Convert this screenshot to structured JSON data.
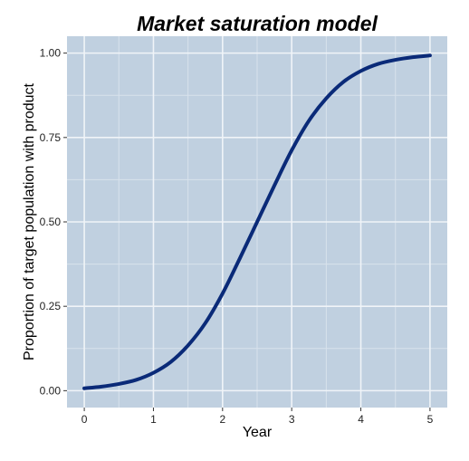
{
  "chart_data": {
    "type": "line",
    "title": "Market saturation model",
    "xlabel": "Year",
    "ylabel": "Proportion of target population with product",
    "xlim": [
      -0.25,
      5.25
    ],
    "ylim": [
      -0.05,
      1.05
    ],
    "grid": true,
    "legend": "none",
    "xticks": [
      0,
      1,
      2,
      3,
      4,
      5
    ],
    "yticks": [
      0.0,
      0.25,
      0.5,
      0.75,
      1.0
    ],
    "xtick_labels": [
      "0",
      "1",
      "2",
      "3",
      "4",
      "5"
    ],
    "ytick_labels": [
      "0.00",
      "0.25",
      "0.50",
      "0.75",
      "1.00"
    ],
    "series": [
      {
        "color": "#0a2a78",
        "x": [
          0.0,
          0.25,
          0.5,
          0.75,
          1.0,
          1.25,
          1.5,
          1.75,
          2.0,
          2.25,
          2.5,
          2.75,
          3.0,
          3.25,
          3.5,
          3.75,
          4.0,
          4.25,
          4.5,
          4.75,
          5.0
        ],
        "y": [
          0.007,
          0.012,
          0.02,
          0.032,
          0.053,
          0.085,
          0.134,
          0.2,
          0.288,
          0.392,
          0.5,
          0.608,
          0.712,
          0.8,
          0.866,
          0.915,
          0.947,
          0.968,
          0.98,
          0.988,
          0.993
        ]
      }
    ]
  },
  "style": {
    "panel_background": "#c0d0e0",
    "grid_major": "#f0f4f8",
    "grid_minor": "#d8e2ec",
    "line_color": "#0a2a78",
    "tick_color": "#333333"
  }
}
